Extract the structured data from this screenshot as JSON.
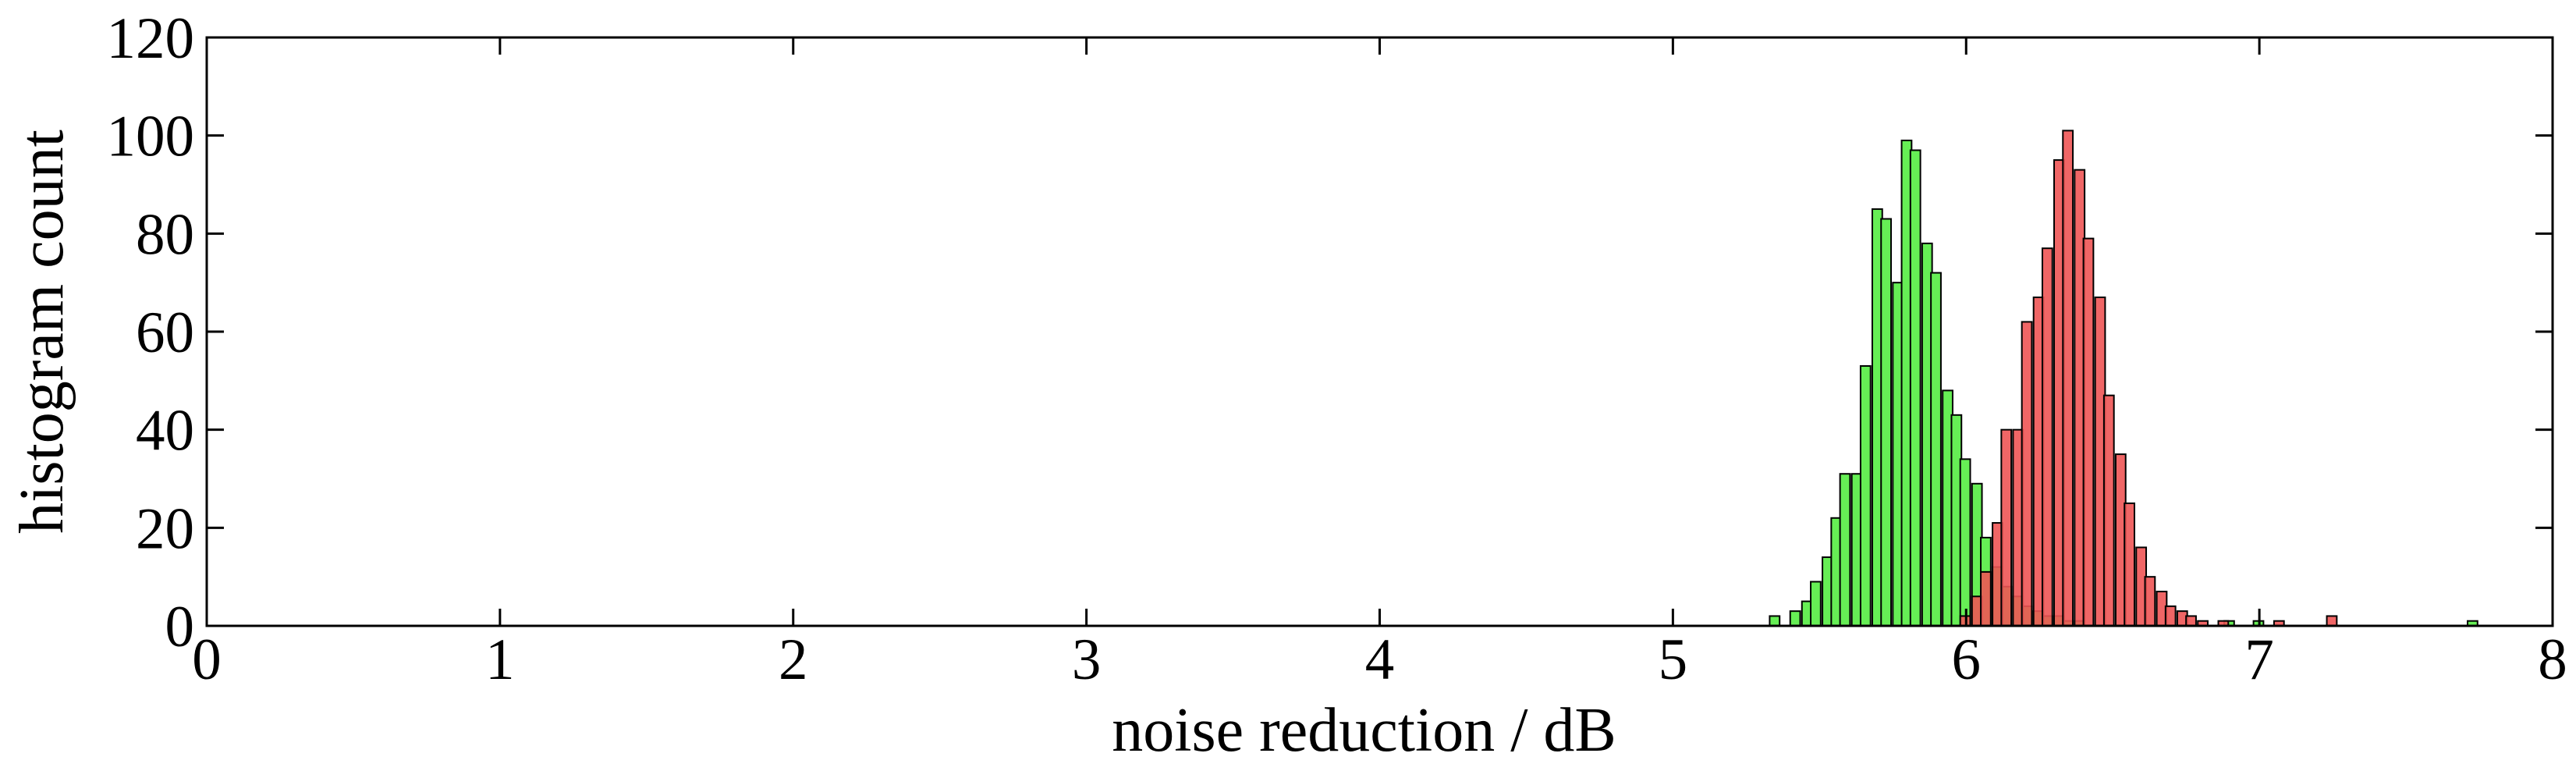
{
  "chart_data": {
    "type": "bar",
    "xlabel": "noise reduction / dB",
    "ylabel": "histogram count",
    "xlim": [
      0,
      8
    ],
    "ylim": [
      0,
      120
    ],
    "xticks": [
      "0",
      "1",
      "2",
      "3",
      "4",
      "5",
      "6",
      "7",
      "8"
    ],
    "yticks": [
      "0",
      "20",
      "40",
      "60",
      "80",
      "100",
      "120"
    ],
    "grid": false,
    "legend": "none",
    "bin_width": 0.034,
    "series": [
      {
        "color": "#66ee55",
        "opacity": 1.0,
        "bins": [
          {
            "x": 5.33,
            "y": 2
          },
          {
            "x": 5.4,
            "y": 3
          },
          {
            "x": 5.44,
            "y": 5
          },
          {
            "x": 5.47,
            "y": 9
          },
          {
            "x": 5.51,
            "y": 14
          },
          {
            "x": 5.54,
            "y": 22
          },
          {
            "x": 5.57,
            "y": 31
          },
          {
            "x": 5.61,
            "y": 31
          },
          {
            "x": 5.64,
            "y": 53
          },
          {
            "x": 5.68,
            "y": 85
          },
          {
            "x": 5.71,
            "y": 83
          },
          {
            "x": 5.75,
            "y": 70
          },
          {
            "x": 5.78,
            "y": 99
          },
          {
            "x": 5.81,
            "y": 97
          },
          {
            "x": 5.85,
            "y": 78
          },
          {
            "x": 5.88,
            "y": 72
          },
          {
            "x": 5.92,
            "y": 48
          },
          {
            "x": 5.95,
            "y": 43
          },
          {
            "x": 5.98,
            "y": 34
          },
          {
            "x": 6.02,
            "y": 29
          },
          {
            "x": 6.05,
            "y": 18
          },
          {
            "x": 6.09,
            "y": 12
          },
          {
            "x": 6.12,
            "y": 8
          },
          {
            "x": 6.16,
            "y": 6
          },
          {
            "x": 6.19,
            "y": 4
          },
          {
            "x": 6.23,
            "y": 3
          },
          {
            "x": 6.26,
            "y": 2
          },
          {
            "x": 6.3,
            "y": 2
          },
          {
            "x": 6.33,
            "y": 1
          },
          {
            "x": 6.37,
            "y": 1
          },
          {
            "x": 6.88,
            "y": 1
          },
          {
            "x": 6.98,
            "y": 1
          },
          {
            "x": 7.71,
            "y": 1
          }
        ]
      },
      {
        "color": "#ee5555",
        "opacity": 0.9,
        "bins": [
          {
            "x": 5.98,
            "y": 2
          },
          {
            "x": 6.02,
            "y": 6
          },
          {
            "x": 6.05,
            "y": 11
          },
          {
            "x": 6.09,
            "y": 21
          },
          {
            "x": 6.12,
            "y": 40
          },
          {
            "x": 6.16,
            "y": 40
          },
          {
            "x": 6.19,
            "y": 62
          },
          {
            "x": 6.23,
            "y": 67
          },
          {
            "x": 6.26,
            "y": 77
          },
          {
            "x": 6.3,
            "y": 95
          },
          {
            "x": 6.33,
            "y": 101
          },
          {
            "x": 6.37,
            "y": 93
          },
          {
            "x": 6.4,
            "y": 79
          },
          {
            "x": 6.44,
            "y": 67
          },
          {
            "x": 6.47,
            "y": 47
          },
          {
            "x": 6.51,
            "y": 35
          },
          {
            "x": 6.54,
            "y": 25
          },
          {
            "x": 6.58,
            "y": 16
          },
          {
            "x": 6.61,
            "y": 10
          },
          {
            "x": 6.65,
            "y": 7
          },
          {
            "x": 6.68,
            "y": 4
          },
          {
            "x": 6.72,
            "y": 3
          },
          {
            "x": 6.75,
            "y": 2
          },
          {
            "x": 6.79,
            "y": 1
          },
          {
            "x": 6.86,
            "y": 1
          },
          {
            "x": 7.05,
            "y": 1
          },
          {
            "x": 7.23,
            "y": 2
          }
        ]
      }
    ]
  }
}
